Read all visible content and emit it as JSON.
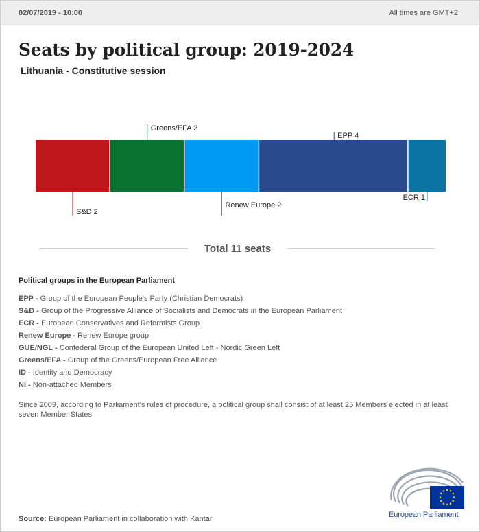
{
  "header": {
    "timestamp": "02/07/2019 - 10:00",
    "timezone": "All times are GMT+2"
  },
  "title": "Seats by political group: 2019-2024",
  "subtitle": "Lithuania - Constitutive session",
  "total_label": "Total 11 seats",
  "chart_data": {
    "type": "bar",
    "orientation": "stacked-horizontal",
    "total": 11,
    "series": [
      {
        "name": "S&D",
        "value": 2,
        "color": "#c0171a",
        "label": "S&D 2",
        "label_side": "below"
      },
      {
        "name": "Greens/EFA",
        "value": 2,
        "color": "#0b7332",
        "label": "Greens/EFA 2",
        "label_side": "above"
      },
      {
        "name": "Renew Europe",
        "value": 2,
        "color": "#0099f6",
        "label": "Renew Europe 2",
        "label_side": "below"
      },
      {
        "name": "EPP",
        "value": 4,
        "color": "#2a4a8f",
        "label": "EPP 4",
        "label_side": "above"
      },
      {
        "name": "ECR",
        "value": 1,
        "color": "#0a73a3",
        "label": "ECR 1",
        "label_side": "below"
      }
    ]
  },
  "legend": {
    "title": "Political groups in the European Parliament",
    "items": [
      {
        "abbr": "EPP -",
        "desc": "Group of the European People's Party (Christian Democrats)"
      },
      {
        "abbr": "S&D -",
        "desc": "Group of the Progressive Alliance of Socialists and Democrats in the European Parliament"
      },
      {
        "abbr": "ECR -",
        "desc": "European Conservatives and Reformists Group"
      },
      {
        "abbr": "Renew Europe -",
        "desc": "Renew Europe group"
      },
      {
        "abbr": "GUE/NGL -",
        "desc": "Confederal Group of the European United Left - Nordic Green Left"
      },
      {
        "abbr": "Greens/EFA -",
        "desc": "Group of the Greens/European Free Alliance"
      },
      {
        "abbr": "ID -",
        "desc": "Identity and Democracy"
      },
      {
        "abbr": "NI -",
        "desc": "Non-attached Members"
      }
    ]
  },
  "note": "Since 2009, according to Parliament's rules of procedure, a political group shall consist of at least 25 Members elected in at least seven Member States.",
  "source": {
    "label": "Source:",
    "text": "European Parliament in collaboration with Kantar"
  },
  "logo": {
    "text": "European Parliament",
    "icon": "european-parliament-hemicycle-icon",
    "flag_color": "#003399",
    "star_color": "#ffcc00"
  }
}
